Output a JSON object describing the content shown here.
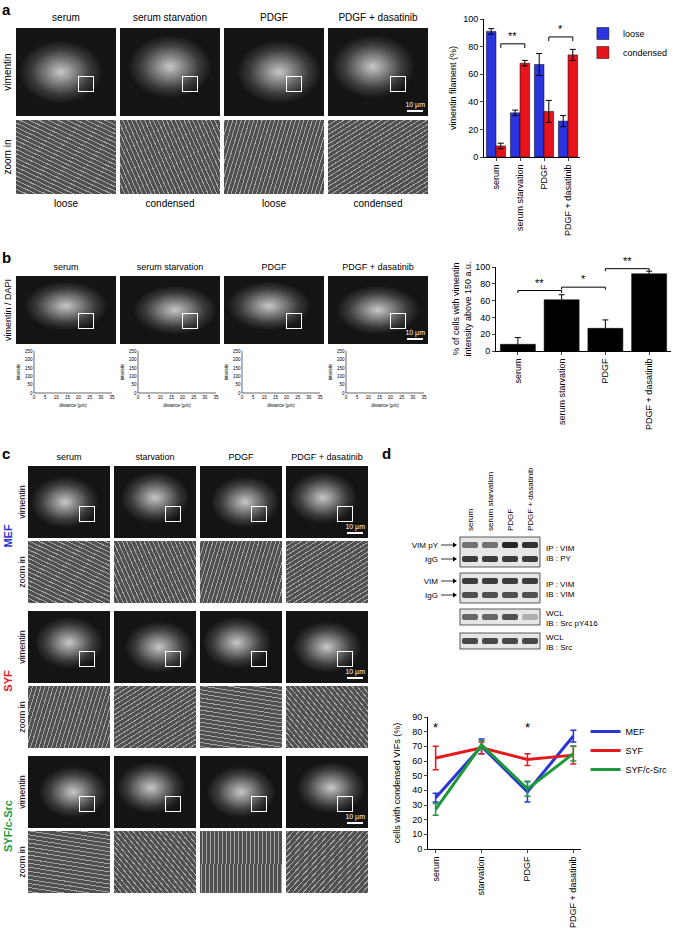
{
  "panels": {
    "a": {
      "letter": "a",
      "columns": [
        "serum",
        "serum starvation",
        "PDGF",
        "PDGF + dasatinib"
      ],
      "row_labels": [
        "vimentin",
        "zoom in"
      ],
      "zoom_labels": [
        "loose",
        "condensed",
        "loose",
        "condensed"
      ],
      "scale_bar": "10 µm"
    },
    "b": {
      "letter": "b",
      "columns": [
        "serum",
        "serum starvation",
        "PDGF",
        "PDGF + dasatinib"
      ],
      "row_label": "vimentin / DAPI",
      "scale_bar": "10 µm",
      "profile": {
        "y_label": "intensity",
        "x_label": "distance (µm)",
        "ylim": [
          0,
          250
        ],
        "yticks": [
          0,
          50,
          100,
          150,
          200,
          250
        ],
        "xlim": [
          0,
          35
        ],
        "xticks": [
          0,
          5,
          10,
          15,
          20,
          25,
          30,
          35
        ]
      }
    },
    "c": {
      "letter": "c",
      "columns": [
        "serum",
        "starvation",
        "PDGF",
        "PDGF + dasatinib"
      ],
      "cell_lines": [
        {
          "name": "MEF",
          "color": "#2a35d6"
        },
        {
          "name": "SYF",
          "color": "#e3191e"
        },
        {
          "name": "SYF/c-Src",
          "color": "#1c9a3a"
        }
      ],
      "row_labels": [
        "vimentin",
        "zoom in"
      ],
      "scale_bar": "10 µm"
    },
    "d": {
      "letter": "d",
      "columns": [
        "serum",
        "serum starvation",
        "PDGF",
        "PDGF + dasatinib"
      ],
      "blots": [
        {
          "left": [
            "VIM pY",
            "IgG"
          ],
          "right": [
            "IP : VIM",
            "IB : PY"
          ],
          "band_intensity": [
            [
              0.55,
              0.55,
              0.9,
              0.85
            ],
            [
              0.8,
              0.8,
              0.8,
              0.8
            ]
          ]
        },
        {
          "left": [
            "VIM",
            "IgG"
          ],
          "right": [
            "IP : VIM",
            "IB : VIM"
          ],
          "band_intensity": [
            [
              0.8,
              0.8,
              0.8,
              0.8
            ],
            [
              0.7,
              0.7,
              0.7,
              0.7
            ]
          ]
        },
        {
          "left": [],
          "right": [
            "WCL",
            "IB : Src pY416"
          ],
          "band_intensity": [
            [
              0.6,
              0.6,
              0.7,
              0.25
            ]
          ]
        },
        {
          "left": [],
          "right": [
            "WCL",
            "IB : Src"
          ],
          "band_intensity": [
            [
              0.75,
              0.75,
              0.75,
              0.75
            ]
          ]
        }
      ]
    }
  },
  "chart_data": [
    {
      "type": "bar",
      "categories": [
        "serum",
        "serum starvation",
        "PDGF",
        "PDGF + dasatinib"
      ],
      "series": [
        {
          "name": "loose",
          "color": "#2a35e0",
          "values": [
            91,
            32,
            67,
            26
          ],
          "errors": [
            2,
            2,
            8,
            4
          ]
        },
        {
          "name": "condensed",
          "color": "#e8141b",
          "values": [
            8,
            68,
            33,
            74
          ],
          "errors": [
            2,
            2,
            8,
            4
          ]
        }
      ],
      "y_label": "vimentin filament (%)",
      "ylim": [
        0,
        100
      ],
      "yticks": [
        0,
        20,
        40,
        60,
        80,
        100
      ],
      "grid": false,
      "legend": "right",
      "annotations": [
        {
          "text": "**",
          "from": "serum",
          "to": "serum starvation",
          "series": "condensed",
          "y": 82
        },
        {
          "text": "*",
          "from": "PDGF",
          "to": "PDGF + dasatinib",
          "series": "condensed",
          "y": 87
        }
      ]
    },
    {
      "type": "bar",
      "categories": [
        "serum",
        "serum starvation",
        "PDGF",
        "PDGF + dasatinib"
      ],
      "values": [
        8,
        61,
        27,
        92
      ],
      "errors": [
        8,
        6,
        10,
        3
      ],
      "color": "#000000",
      "y_label": "% of cells with vimentin intensity above 150 a.u.",
      "ylim": [
        0,
        100
      ],
      "yticks": [
        0,
        20,
        40,
        60,
        80,
        100
      ],
      "grid": false,
      "annotations": [
        {
          "text": "**",
          "from": "serum",
          "to": "serum starvation",
          "y": 72
        },
        {
          "text": "*",
          "from": "serum starvation",
          "to": "PDGF",
          "y": 76
        },
        {
          "text": "**",
          "from": "PDGF",
          "to": "PDGF + dasatinib",
          "y": 98
        }
      ]
    },
    {
      "type": "line",
      "categories": [
        "serum",
        "starvation",
        "PDGF",
        "PDGF + dasatinib"
      ],
      "series": [
        {
          "name": "MEF",
          "color": "#2a35d6",
          "values": [
            35,
            70,
            39,
            77
          ],
          "errors": [
            3,
            5,
            7,
            4
          ]
        },
        {
          "name": "SYF",
          "color": "#e3191e",
          "values": [
            62,
            69,
            61,
            64
          ],
          "errors": [
            8,
            4,
            4,
            6
          ]
        },
        {
          "name": "SYF/c-Src",
          "color": "#1c9a3a",
          "values": [
            27,
            71,
            41,
            65
          ],
          "errors": [
            4,
            3,
            5,
            5
          ]
        }
      ],
      "y_label": "cells with condensed VIFs (%)",
      "ylim": [
        0,
        90
      ],
      "yticks": [
        0,
        10,
        20,
        30,
        40,
        50,
        60,
        70,
        80,
        90
      ],
      "grid": false,
      "legend": "right",
      "line_style": "solid",
      "annotations": [
        {
          "text": "*",
          "at": "serum",
          "y": 83
        },
        {
          "text": "*",
          "at": "PDGF",
          "y": 83
        }
      ]
    }
  ]
}
